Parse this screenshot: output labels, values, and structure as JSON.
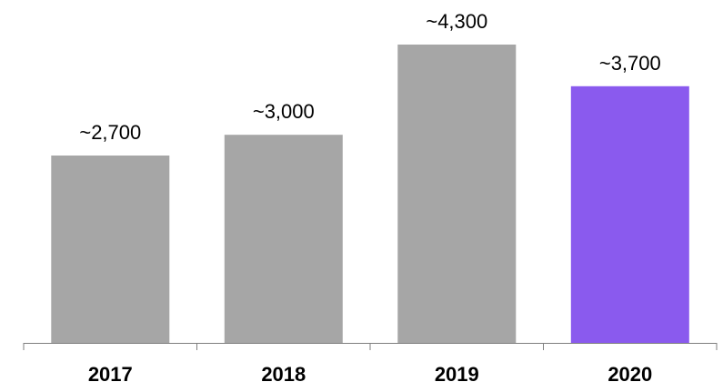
{
  "chart_data": {
    "type": "bar",
    "categories": [
      "2017",
      "2018",
      "2019",
      "2020"
    ],
    "values": [
      2700,
      3000,
      4300,
      3700
    ],
    "data_labels": [
      "~2,700",
      "~3,000",
      "~4,300",
      "~3,700"
    ],
    "colors": [
      "#a6a6a6",
      "#a6a6a6",
      "#a6a6a6",
      "#8a5aee"
    ],
    "highlight_color": "#8a5aee",
    "default_color": "#a6a6a6",
    "axis_color": "#7f7f7f",
    "grid": false,
    "legend": "none"
  }
}
